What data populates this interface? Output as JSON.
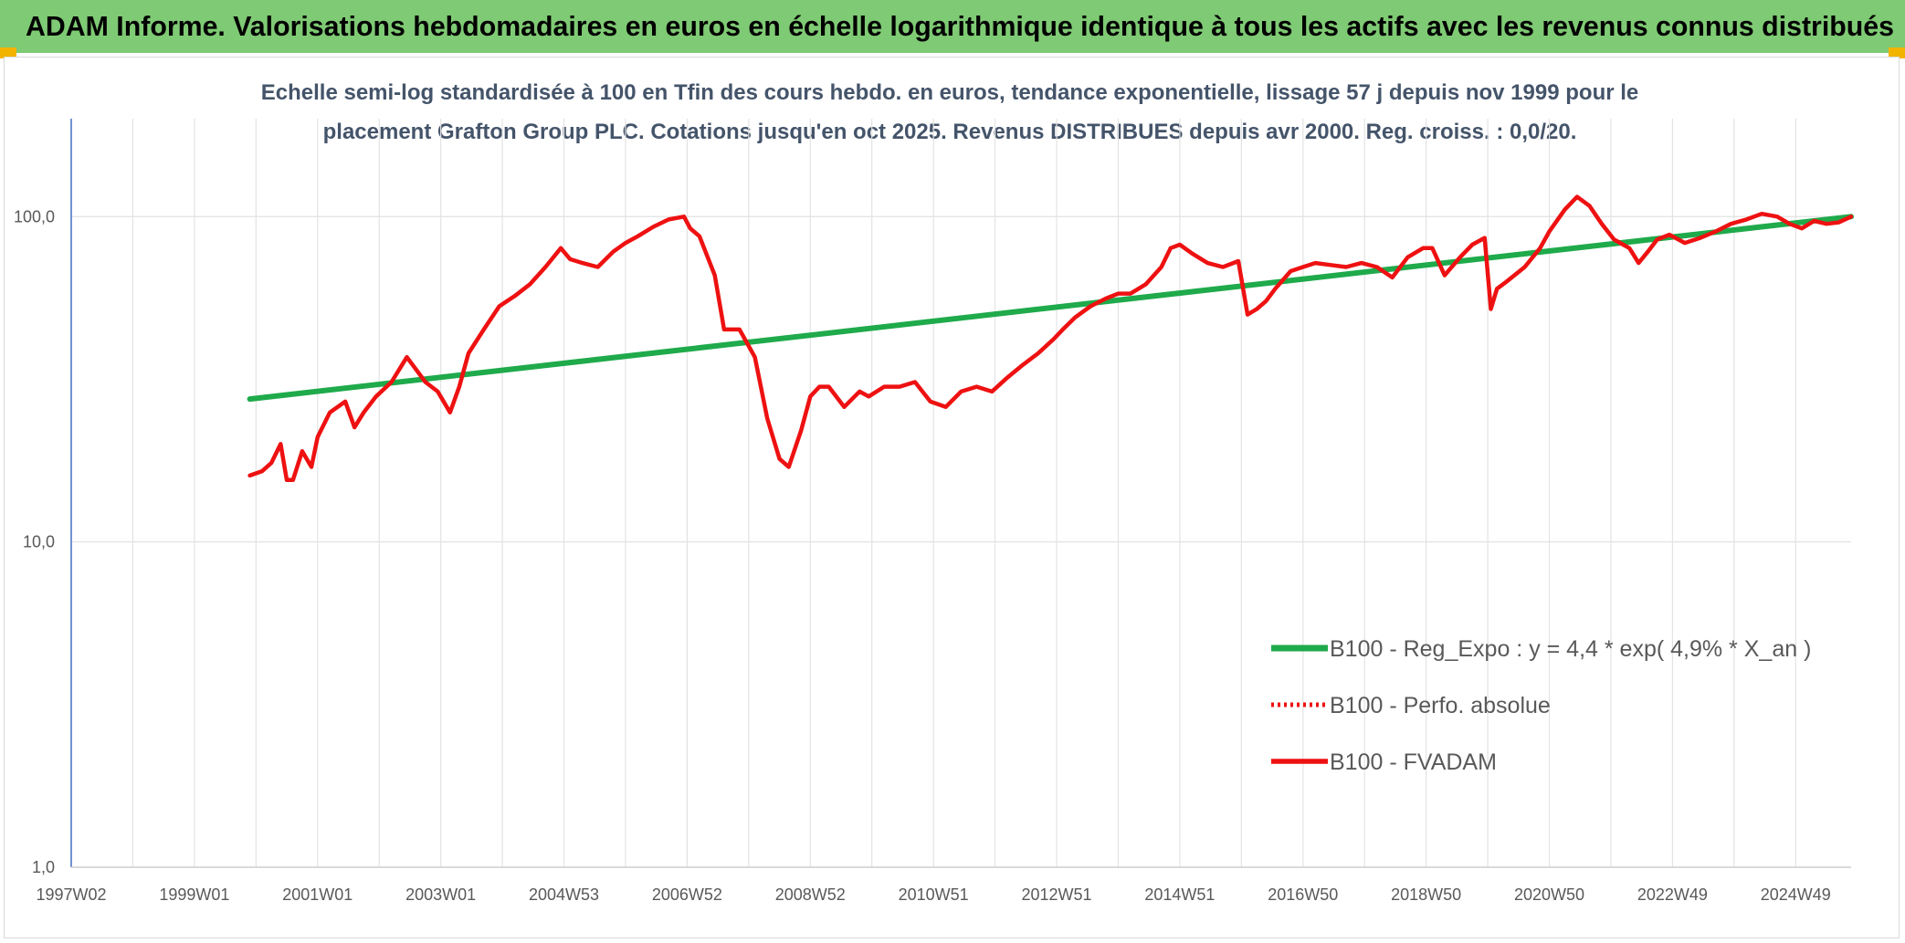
{
  "header": {
    "title": "ADAM Informe. Valorisations hebdomadaires en euros en échelle logarithmique identique à tous les actifs avec les revenus connus distribués"
  },
  "colors": {
    "header_bg": "#7fca74",
    "corner": "#f2b400",
    "trend": "#1faa4b",
    "fvadam": "#ee1111",
    "perfo": "#ee1111",
    "grid": "#e3e3e3",
    "axis": "#4472c4"
  },
  "chart_data": {
    "type": "line",
    "title_lines": [
      "Echelle semi-log standardisée à 100 en Tfin des cours hebdo. en euros, tendance exponentielle, lissage 57 j depuis nov 1999 pour le",
      "placement Grafton Group PLC. Cotations jusqu'en oct 2025. Revenus DISTRIBUES depuis avr 2000. Reg. croiss. : 0,0/20."
    ],
    "y_scale": "log",
    "ylim": [
      1,
      200
    ],
    "y_ticks": [
      {
        "value": 100,
        "label": "100,0"
      },
      {
        "value": 10,
        "label": "10,0"
      },
      {
        "value": 1,
        "label": "1,0"
      }
    ],
    "x_range": [
      1997.0,
      2025.9
    ],
    "x_ticks": [
      {
        "x": 1997.0,
        "label": "1997W02"
      },
      {
        "x": 1999.0,
        "label": "1999W01"
      },
      {
        "x": 2001.0,
        "label": "2001W01"
      },
      {
        "x": 2003.0,
        "label": "2003W01"
      },
      {
        "x": 2005.0,
        "label": "2004W53"
      },
      {
        "x": 2007.0,
        "label": "2006W52"
      },
      {
        "x": 2009.0,
        "label": "2008W52"
      },
      {
        "x": 2011.0,
        "label": "2010W51"
      },
      {
        "x": 2013.0,
        "label": "2012W51"
      },
      {
        "x": 2015.0,
        "label": "2014W51"
      },
      {
        "x": 2017.0,
        "label": "2016W50"
      },
      {
        "x": 2019.0,
        "label": "2018W50"
      },
      {
        "x": 2021.0,
        "label": "2020W50"
      },
      {
        "x": 2023.0,
        "label": "2022W49"
      },
      {
        "x": 2025.0,
        "label": "2024W49"
      }
    ],
    "grid": true,
    "legend_position": "bottom-right",
    "series": [
      {
        "name": "B100 - Reg_Expo : y = 4,4 * exp( 4,9% *  X_an )",
        "style": "solid-green",
        "x": [
          1999.9,
          2025.9
        ],
        "y": [
          27.5,
          100
        ]
      },
      {
        "name": "B100 - Perfo. absolue",
        "style": "dotted-red",
        "x": [],
        "y": []
      },
      {
        "name": "B100 - FVADAM",
        "style": "solid-red",
        "x": [
          1999.9,
          2000.1,
          2000.25,
          2000.4,
          2000.5,
          2000.6,
          2000.75,
          2000.9,
          2001.0,
          2001.2,
          2001.45,
          2001.6,
          2001.75,
          2001.95,
          2002.2,
          2002.45,
          2002.75,
          2002.95,
          2003.15,
          2003.3,
          2003.45,
          2003.7,
          2003.95,
          2004.2,
          2004.45,
          2004.7,
          2004.95,
          2005.1,
          2005.3,
          2005.55,
          2005.8,
          2006.0,
          2006.2,
          2006.45,
          2006.7,
          2006.95,
          2007.05,
          2007.2,
          2007.45,
          2007.6,
          2007.85,
          2008.1,
          2008.3,
          2008.5,
          2008.65,
          2008.85,
          2009.0,
          2009.15,
          2009.3,
          2009.55,
          2009.8,
          2009.95,
          2010.2,
          2010.45,
          2010.7,
          2010.95,
          2011.2,
          2011.45,
          2011.7,
          2011.95,
          2012.2,
          2012.45,
          2012.7,
          2012.95,
          2013.1,
          2013.3,
          2013.55,
          2013.8,
          2014.0,
          2014.2,
          2014.45,
          2014.7,
          2014.85,
          2015.0,
          2015.2,
          2015.45,
          2015.7,
          2015.95,
          2016.1,
          2016.25,
          2016.4,
          2016.55,
          2016.8,
          2017.0,
          2017.2,
          2017.45,
          2017.7,
          2017.95,
          2018.2,
          2018.45,
          2018.7,
          2018.95,
          2019.1,
          2019.3,
          2019.55,
          2019.75,
          2019.95,
          2020.05,
          2020.15,
          2020.3,
          2020.6,
          2020.85,
          2021.0,
          2021.25,
          2021.45,
          2021.65,
          2021.85,
          2022.05,
          2022.3,
          2022.45,
          2022.6,
          2022.75,
          2022.95,
          2023.2,
          2023.45,
          2023.7,
          2023.95,
          2024.2,
          2024.45,
          2024.7,
          2024.9,
          2025.1,
          2025.3,
          2025.5,
          2025.7,
          2025.9
        ],
        "y": [
          16,
          16.5,
          17.5,
          20,
          15.5,
          15.5,
          19,
          17,
          21,
          25,
          27,
          22.5,
          25,
          28,
          31,
          37,
          31,
          29,
          25,
          30,
          38,
          45,
          53,
          57,
          62,
          70,
          80,
          74,
          72,
          70,
          78,
          83,
          87,
          93,
          98,
          100,
          92,
          87,
          66,
          45,
          45,
          37,
          24,
          18,
          17,
          22,
          28,
          30,
          30,
          26,
          29,
          28,
          30,
          30,
          31,
          27,
          26,
          29,
          30,
          29,
          32,
          35,
          38,
          42,
          45,
          49,
          53,
          56,
          58,
          58,
          62,
          70,
          80,
          82,
          77,
          72,
          70,
          73,
          50,
          52,
          55,
          60,
          68,
          70,
          72,
          71,
          70,
          72,
          70,
          65,
          75,
          80,
          80,
          66,
          75,
          82,
          86,
          52,
          60,
          63,
          70,
          80,
          90,
          105,
          115,
          108,
          95,
          85,
          80,
          72,
          78,
          85,
          88,
          83,
          86,
          90,
          95,
          98,
          102,
          100,
          95,
          92,
          97,
          95,
          96,
          100
        ]
      }
    ]
  }
}
